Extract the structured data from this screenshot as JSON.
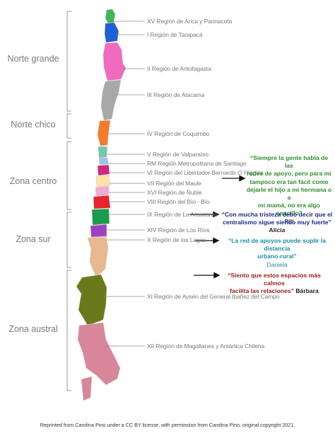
{
  "zones": [
    "Norte grande",
    "Norte chico",
    "Zona centro",
    "Zona sur",
    "Zona austral"
  ],
  "regions": [
    "XV Región de Arica y Parinacota",
    "I Región de Tarapacá",
    "II Región de Antofagasta",
    "III Región de Atacama",
    "IV Región de Coquimbo",
    "V Región de Valparaíso",
    "RM Región Metropolitana de Santiago",
    "VI Región del Libertador Bernardo O´Higgins",
    "VII Región del Maule",
    "XVI Región de Ñuble",
    "VIII Región del Bío - Bío",
    "IX Región de La Araucanía",
    "XIV Región de Los Ríos",
    "X Región de los Lagos",
    "XI  Región de  Aysén del General Ibañez del Campo",
    "XII Región de Magallanes y Antártica Chilena"
  ],
  "quotes": [
    {
      "text_lines": [
        "“Siempre la gente habla de las",
        "redes de apoyo, pero para mí",
        "tampoco era tan fácil como",
        "dejarle el hijo a mi hermana o a",
        "mi mamá, no era algo sencillo”"
      ],
      "author": "Pili",
      "color": "#2f8f2f"
    },
    {
      "text_lines": [
        "“Con mucha tristeza debo decir que el",
        "centralismo sigue siendo muy fuerte”"
      ],
      "author": "Alicia",
      "color": "#1a2a8a"
    },
    {
      "text_lines": [
        "“La red de apoyos puede suplir la distancia",
        "urbano-rural”"
      ],
      "author": "Daniela",
      "color": "#1a8ea6"
    },
    {
      "text_lines": [
        "“Siento que estos espacios más calmos",
        "facilita las relaciones”"
      ],
      "author": "Bárbara",
      "color": "#9a1a1a"
    }
  ],
  "credit": "Reprinted from Carolina Pino under a CC BY license, with permission from Carolina Pino, original copyright 2021."
}
